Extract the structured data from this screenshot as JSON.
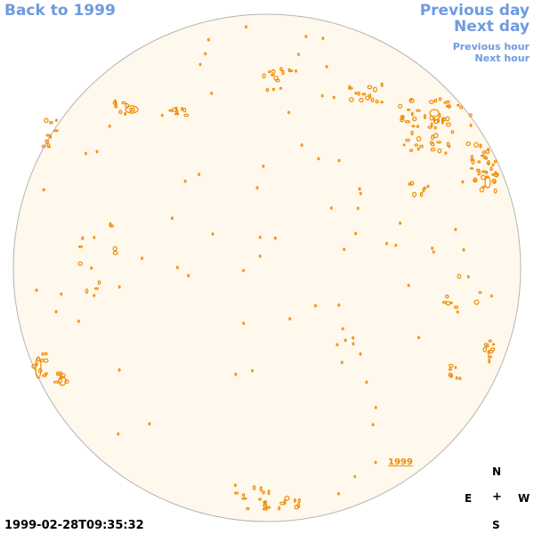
{
  "nav": {
    "back_label": "Back to 1999",
    "previous_day_label": "Previous day",
    "next_day_label": "Next day",
    "previous_hour_label": "Previous hour",
    "next_hour_label": "Next hour"
  },
  "disk": {
    "fill_color": "#fff8ec",
    "outline_color": "#b4b4b4",
    "feature_color": "#f08a00",
    "year_label": "1999"
  },
  "compass": {
    "north": "N",
    "east": "E",
    "center": "+",
    "west": "W",
    "south": "S"
  },
  "timestamp": "1999-02-28T09:35:32"
}
